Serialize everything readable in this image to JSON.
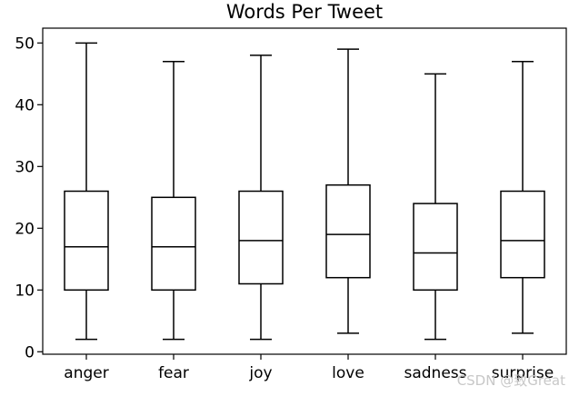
{
  "chart_data": {
    "type": "box",
    "title": "Words Per Tweet",
    "xlabel": "",
    "ylabel": "",
    "ylim": [
      -0.4,
      52.4
    ],
    "yticks": [
      0,
      10,
      20,
      30,
      40,
      50
    ],
    "grid": false,
    "categories": [
      "anger",
      "fear",
      "joy",
      "love",
      "sadness",
      "surprise"
    ],
    "boxes": [
      {
        "category": "anger",
        "whisker_low": 2,
        "q1": 10,
        "median": 17,
        "q3": 26,
        "whisker_high": 50
      },
      {
        "category": "fear",
        "whisker_low": 2,
        "q1": 10,
        "median": 17,
        "q3": 25,
        "whisker_high": 47
      },
      {
        "category": "joy",
        "whisker_low": 2,
        "q1": 11,
        "median": 18,
        "q3": 26,
        "whisker_high": 48
      },
      {
        "category": "love",
        "whisker_low": 3,
        "q1": 12,
        "median": 19,
        "q3": 27,
        "whisker_high": 49
      },
      {
        "category": "sadness",
        "whisker_low": 2,
        "q1": 10,
        "median": 16,
        "q3": 24,
        "whisker_high": 45
      },
      {
        "category": "surprise",
        "whisker_low": 3,
        "q1": 12,
        "median": 18,
        "q3": 26,
        "whisker_high": 47
      }
    ],
    "colors": {
      "box": "#000000",
      "median": "#000000",
      "background": "#ffffff"
    }
  },
  "watermark": "CSDN @致Great"
}
